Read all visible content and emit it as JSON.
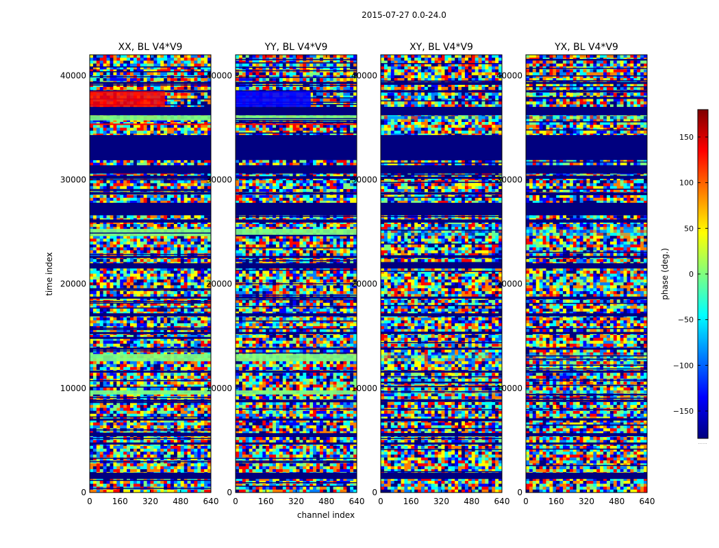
{
  "suptitle": "2015-07-27 0.0-24.0",
  "xlabel": "channel index",
  "ylabel": "time index",
  "colorbar_label": "phase (deg.)",
  "colorbar_footer": "......",
  "colormap_stops": [
    "#00007f",
    "#0000ff",
    "#007fff",
    "#00ffff",
    "#7fff7f",
    "#ffff00",
    "#ff7f00",
    "#ff0000",
    "#7f0000"
  ],
  "chart_data": {
    "type": "heatmap",
    "title": "2015-07-27 0.0-24.0",
    "xlabel": "channel index",
    "ylabel": "time index",
    "x_range": [
      0,
      640
    ],
    "y_range": [
      0,
      42000
    ],
    "x_ticks": [
      0,
      160,
      320,
      480,
      640
    ],
    "y_ticks": [
      0,
      10000,
      20000,
      30000,
      40000
    ],
    "colorbar": {
      "label": "phase (deg.)",
      "range": [
        -180,
        180
      ],
      "ticks": [
        -150,
        -100,
        -50,
        0,
        50,
        100,
        150
      ],
      "tick_labels": [
        "−150",
        "−100",
        "−50",
        "0",
        "50",
        "100",
        "150"
      ]
    },
    "panels": [
      {
        "title": "XX, BL V4*V9",
        "pol": "XX",
        "red_band": true
      },
      {
        "title": "YY, BL V4*V9",
        "pol": "YY",
        "red_band": false
      },
      {
        "title": "XY, BL V4*V9",
        "pol": "XY",
        "red_band": false
      },
      {
        "title": "YX, BL V4*V9",
        "pol": "YX",
        "red_band": false
      }
    ],
    "flagged_time_bands": [
      [
        1300,
        1900
      ],
      [
        4600,
        4800
      ],
      [
        5400,
        5700
      ],
      [
        6900,
        7100
      ],
      [
        8700,
        8900
      ],
      [
        11500,
        11700
      ],
      [
        13700,
        13900
      ],
      [
        15200,
        15400
      ],
      [
        16900,
        17200
      ],
      [
        18600,
        18800
      ],
      [
        21500,
        22000
      ],
      [
        22500,
        22700
      ],
      [
        25900,
        26200
      ],
      [
        26600,
        27800
      ],
      [
        28600,
        28800
      ],
      [
        30100,
        30300
      ],
      [
        30600,
        31400
      ],
      [
        31900,
        34300
      ],
      [
        36200,
        37000
      ],
      [
        38400,
        38600
      ],
      [
        39200,
        39400
      ]
    ],
    "uniform_time_bands": [
      [
        9400,
        9800
      ],
      [
        12600,
        13300
      ],
      [
        24600,
        25300
      ],
      [
        35700,
        36200
      ]
    ]
  }
}
